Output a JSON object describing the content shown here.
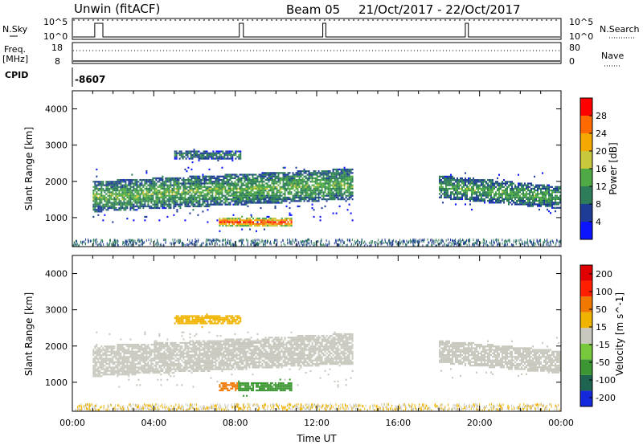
{
  "header": {
    "station": "Unwin (fitACF)",
    "beam": "Beam 05",
    "daterange": "21/Oct/2017 - 22/Oct/2017"
  },
  "top_panels": {
    "nsky_label": "N.Sky",
    "nsky_ticks": [
      "10^5",
      "10^0"
    ],
    "nsearch_label": "N.Search",
    "nsearch_ticks": [
      "10^5",
      "10^0"
    ],
    "freq_label_1": "Freq.",
    "freq_label_2": "[MHz]",
    "freq_ticks": [
      "18",
      "8"
    ],
    "nave_label": "Nave",
    "nave_ticks": [
      "80",
      "0"
    ],
    "cpid_label": "CPID",
    "cpid_value": "-8607"
  },
  "x_axis": {
    "label": "Time UT",
    "ticks": [
      "00:00",
      "04:00",
      "08:00",
      "12:00",
      "16:00",
      "20:00",
      "00:00"
    ]
  },
  "chart_data": [
    {
      "type": "heatmap",
      "name": "power",
      "ylabel": "Slant Range [km]",
      "yticks": [
        1000,
        2000,
        3000,
        4000
      ],
      "ylim": [
        200,
        4500
      ],
      "xlim_hours": [
        0,
        24
      ],
      "colorbar_label": "Power [dB]",
      "colorbar_ticks": [
        "4",
        "8",
        "12",
        "16",
        "20",
        "24",
        "28"
      ],
      "colorbar_colors": [
        "#0a14ff",
        "#1e3c96",
        "#2e7d5a",
        "#4faa46",
        "#c8c83c",
        "#f5a800",
        "#ff6a00",
        "#ff0000"
      ],
      "regions": [
        {
          "t": [
            1.0,
            13.8
          ],
          "r": [
            900,
            2450
          ],
          "level": 0.45
        },
        {
          "t": [
            7.2,
            10.8
          ],
          "r": [
            650,
            1150
          ],
          "level": 0.95
        },
        {
          "t": [
            5.0,
            8.3
          ],
          "r": [
            2550,
            2950
          ],
          "level": 0.3
        },
        {
          "t": [
            18.0,
            24.0
          ],
          "r": [
            1150,
            2300
          ],
          "level": 0.4
        }
      ]
    },
    {
      "type": "heatmap",
      "name": "velocity",
      "ylabel": "Slant Range [km]",
      "yticks": [
        1000,
        2000,
        3000,
        4000
      ],
      "ylim": [
        200,
        4500
      ],
      "xlim_hours": [
        0,
        24
      ],
      "colorbar_label": "Velocity [m s^-1]",
      "colorbar_ticks": [
        "200",
        "100",
        "50",
        "15",
        "-15",
        "-50",
        "-100",
        "-200"
      ],
      "colorbar_colors": [
        "#1428dc",
        "#1e6450",
        "#3c9632",
        "#78c83c",
        "#c8c8be",
        "#f0b400",
        "#f07800",
        "#ff1e00",
        "#e00000"
      ],
      "regions": [
        {
          "t": [
            1.0,
            13.8
          ],
          "r": [
            900,
            2450
          ],
          "vel": 0
        },
        {
          "t": [
            7.2,
            10.8
          ],
          "r": [
            650,
            1150
          ],
          "vel": 60
        },
        {
          "t": [
            5.0,
            8.3
          ],
          "r": [
            2550,
            2950
          ],
          "vel": -30
        },
        {
          "t": [
            18.0,
            24.0
          ],
          "r": [
            1150,
            2300
          ],
          "vel": 0
        }
      ]
    }
  ]
}
